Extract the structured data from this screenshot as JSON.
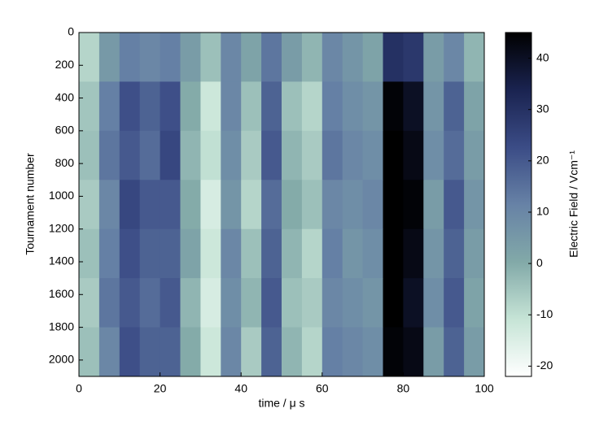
{
  "chart_data": {
    "type": "heatmap",
    "xlabel": "time / μ s",
    "ylabel": "Tournament number",
    "colorbar_label": "Electric Field / Vcm⁻¹",
    "xlim": [
      0,
      100
    ],
    "xticks": [
      0,
      20,
      40,
      60,
      80,
      100
    ],
    "ylim": [
      0,
      2100
    ],
    "y_inverted": true,
    "yticks": [
      0,
      200,
      400,
      600,
      800,
      1000,
      1200,
      1400,
      1600,
      1800,
      2000
    ],
    "clim": [
      -22,
      45
    ],
    "cticks": [
      -20,
      -10,
      0,
      10,
      20,
      30,
      40
    ],
    "colors": [
      "#ffffff",
      "#c6e4d6",
      "#82a9a8",
      "#6782a6",
      "#3b4c86",
      "#1a2350",
      "#000000"
    ],
    "values": [
      [
        -8,
        5,
        12,
        10,
        12,
        4,
        -4,
        10,
        2,
        14,
        4,
        -2,
        10,
        6,
        2,
        30,
        28,
        4,
        10,
        -2
      ],
      [
        -5,
        12,
        22,
        18,
        22,
        0,
        -12,
        10,
        -4,
        18,
        -4,
        -8,
        12,
        8,
        6,
        44,
        40,
        6,
        18,
        2
      ],
      [
        -4,
        14,
        20,
        16,
        24,
        -2,
        -10,
        8,
        -6,
        20,
        -2,
        -6,
        14,
        10,
        8,
        45,
        42,
        8,
        16,
        4
      ],
      [
        -6,
        10,
        24,
        20,
        20,
        0,
        -14,
        6,
        -8,
        16,
        0,
        -4,
        10,
        8,
        10,
        45,
        44,
        4,
        20,
        6
      ],
      [
        -4,
        12,
        22,
        18,
        18,
        2,
        -12,
        10,
        -4,
        18,
        -2,
        -8,
        12,
        6,
        8,
        45,
        42,
        6,
        18,
        4
      ],
      [
        -6,
        14,
        20,
        16,
        20,
        -2,
        -14,
        8,
        -2,
        20,
        -4,
        -6,
        10,
        8,
        6,
        45,
        40,
        8,
        20,
        2
      ],
      [
        -4,
        10,
        22,
        18,
        18,
        0,
        -12,
        10,
        -6,
        18,
        -2,
        -8,
        12,
        10,
        8,
        44,
        42,
        4,
        18,
        4
      ]
    ]
  }
}
